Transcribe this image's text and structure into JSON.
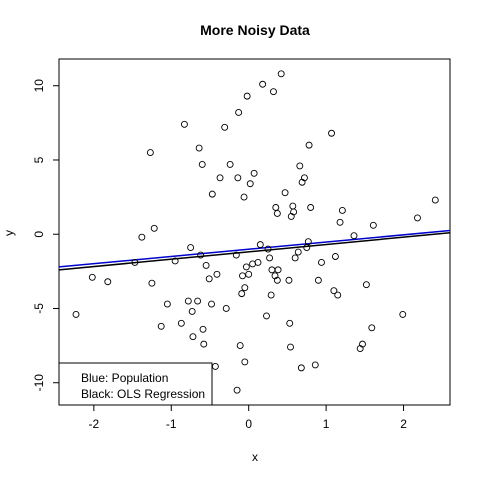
{
  "chart_data": {
    "type": "scatter",
    "title": "More Noisy Data",
    "xlabel": "x",
    "ylabel": "y",
    "xlim": [
      -2.45,
      2.6
    ],
    "ylim": [
      -11.5,
      11.8
    ],
    "x_ticks": [
      -2,
      -1,
      0,
      1,
      2
    ],
    "y_ticks": [
      -10,
      -5,
      0,
      5,
      10
    ],
    "grid": false,
    "legend": {
      "placement": "bottom-left",
      "entries": [
        "Blue: Population",
        "Black: OLS Regression"
      ]
    },
    "lines": [
      {
        "name": "Population",
        "color": "#0000cc",
        "x": [
          -2.45,
          2.6
        ],
        "y": [
          -2.2,
          0.25
        ]
      },
      {
        "name": "OLS Regression",
        "color": "#000000",
        "x": [
          -2.45,
          2.6
        ],
        "y": [
          -2.4,
          0.1
        ]
      }
    ],
    "points": [
      [
        -2.23,
        -5.4
      ],
      [
        -2.02,
        -2.9
      ],
      [
        -1.82,
        -3.2
      ],
      [
        -1.47,
        -1.9
      ],
      [
        -1.38,
        -0.2
      ],
      [
        -1.27,
        5.5
      ],
      [
        -1.25,
        -3.3
      ],
      [
        -1.22,
        0.4
      ],
      [
        -1.13,
        -6.2
      ],
      [
        -1.05,
        -4.7
      ],
      [
        -0.95,
        -1.8
      ],
      [
        -0.87,
        -6.0
      ],
      [
        -0.83,
        7.4
      ],
      [
        -0.78,
        -4.5
      ],
      [
        -0.75,
        -0.9
      ],
      [
        -0.73,
        -5.2
      ],
      [
        -0.72,
        -6.9
      ],
      [
        -0.66,
        -4.5
      ],
      [
        -0.64,
        5.8
      ],
      [
        -0.62,
        -1.4
      ],
      [
        -0.6,
        4.7
      ],
      [
        -0.59,
        -6.4
      ],
      [
        -0.58,
        -7.4
      ],
      [
        -0.55,
        -2.1
      ],
      [
        -0.51,
        -3.0
      ],
      [
        -0.48,
        -4.7
      ],
      [
        -0.47,
        2.7
      ],
      [
        -0.43,
        -8.9
      ],
      [
        -0.41,
        -2.7
      ],
      [
        -0.37,
        3.8
      ],
      [
        -0.31,
        7.2
      ],
      [
        -0.29,
        -5.0
      ],
      [
        -0.24,
        4.7
      ],
      [
        -0.16,
        -1.4
      ],
      [
        -0.15,
        -10.5
      ],
      [
        -0.14,
        3.8
      ],
      [
        -0.13,
        8.2
      ],
      [
        -0.11,
        -7.5
      ],
      [
        -0.09,
        -4.0
      ],
      [
        -0.08,
        -2.8
      ],
      [
        -0.06,
        2.5
      ],
      [
        -0.05,
        -3.6
      ],
      [
        -0.05,
        -8.6
      ],
      [
        -0.03,
        -2.2
      ],
      [
        -0.02,
        9.3
      ],
      [
        0.0,
        -2.7
      ],
      [
        0.02,
        3.4
      ],
      [
        0.05,
        -2.0
      ],
      [
        0.07,
        4.1
      ],
      [
        0.12,
        -1.9
      ],
      [
        0.15,
        -0.7
      ],
      [
        0.18,
        10.1
      ],
      [
        0.23,
        -5.5
      ],
      [
        0.25,
        -1.0
      ],
      [
        0.27,
        -1.6
      ],
      [
        0.29,
        -4.1
      ],
      [
        0.3,
        -2.4
      ],
      [
        0.32,
        9.6
      ],
      [
        0.34,
        -2.8
      ],
      [
        0.35,
        1.8
      ],
      [
        0.37,
        -3.1
      ],
      [
        0.37,
        1.4
      ],
      [
        0.38,
        -2.4
      ],
      [
        0.42,
        10.8
      ],
      [
        0.47,
        2.8
      ],
      [
        0.52,
        -3.1
      ],
      [
        0.53,
        -6.0
      ],
      [
        0.54,
        -7.6
      ],
      [
        0.55,
        1.2
      ],
      [
        0.57,
        1.9
      ],
      [
        0.58,
        1.5
      ],
      [
        0.6,
        -1.6
      ],
      [
        0.64,
        -1.2
      ],
      [
        0.66,
        4.6
      ],
      [
        0.68,
        -9.0
      ],
      [
        0.69,
        3.5
      ],
      [
        0.72,
        3.8
      ],
      [
        0.75,
        -0.9
      ],
      [
        0.77,
        -0.5
      ],
      [
        0.78,
        6.0
      ],
      [
        0.8,
        1.8
      ],
      [
        0.86,
        -8.8
      ],
      [
        0.9,
        -3.1
      ],
      [
        0.94,
        -1.9
      ],
      [
        1.07,
        6.8
      ],
      [
        1.1,
        -3.8
      ],
      [
        1.12,
        -1.5
      ],
      [
        1.15,
        -4.1
      ],
      [
        1.18,
        0.8
      ],
      [
        1.21,
        1.6
      ],
      [
        1.36,
        -0.1
      ],
      [
        1.44,
        -7.7
      ],
      [
        1.47,
        -7.4
      ],
      [
        1.52,
        -3.4
      ],
      [
        1.59,
        -6.3
      ],
      [
        1.61,
        0.6
      ],
      [
        1.99,
        -5.4
      ],
      [
        2.18,
        1.1
      ],
      [
        2.41,
        2.3
      ]
    ]
  }
}
